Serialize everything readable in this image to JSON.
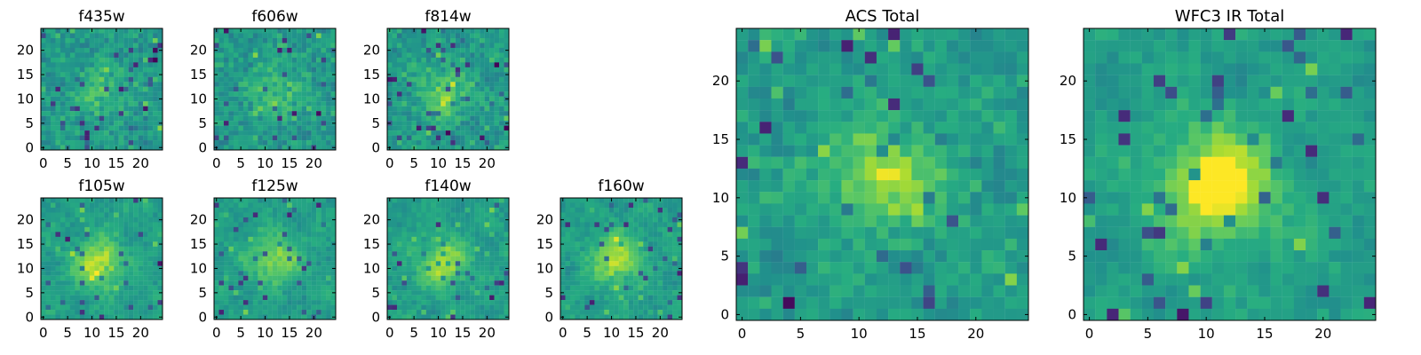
{
  "chart_data": [
    {
      "type": "heatmap",
      "title": "f435w",
      "grid_size": 25,
      "xticks": [
        0,
        5,
        10,
        15,
        20
      ],
      "yticks": [
        0,
        5,
        10,
        15,
        20
      ],
      "colormap": "viridis",
      "center": [
        11,
        11
      ],
      "texture": "noisy",
      "peak_strength": 0.16
    },
    {
      "type": "heatmap",
      "title": "f606w",
      "grid_size": 25,
      "xticks": [
        0,
        5,
        10,
        15,
        20
      ],
      "yticks": [
        0,
        5,
        10,
        15,
        20
      ],
      "colormap": "viridis",
      "center": [
        12,
        11
      ],
      "texture": "noisy",
      "peak_strength": 0.18
    },
    {
      "type": "heatmap",
      "title": "f814w",
      "grid_size": 25,
      "xticks": [
        0,
        5,
        10,
        15,
        20
      ],
      "yticks": [
        0,
        5,
        10,
        15,
        20
      ],
      "colormap": "viridis",
      "center": [
        11,
        11
      ],
      "texture": "noisy",
      "peak_strength": 0.24
    },
    {
      "type": "heatmap",
      "title": "f105w",
      "grid_size": 25,
      "xticks": [
        0,
        5,
        10,
        15,
        20
      ],
      "yticks": [
        0,
        5,
        10,
        15,
        20
      ],
      "colormap": "viridis",
      "center": [
        11,
        11
      ],
      "texture": "smooth",
      "peak_strength": 0.34
    },
    {
      "type": "heatmap",
      "title": "f125w",
      "grid_size": 25,
      "xticks": [
        0,
        5,
        10,
        15,
        20
      ],
      "yticks": [
        0,
        5,
        10,
        15,
        20
      ],
      "colormap": "viridis",
      "center": [
        12,
        12
      ],
      "texture": "smooth",
      "peak_strength": 0.28
    },
    {
      "type": "heatmap",
      "title": "f140w",
      "grid_size": 25,
      "xticks": [
        0,
        5,
        10,
        15,
        20
      ],
      "yticks": [
        0,
        5,
        10,
        15,
        20
      ],
      "colormap": "viridis",
      "center": [
        11,
        11
      ],
      "texture": "smooth",
      "peak_strength": 0.32
    },
    {
      "type": "heatmap",
      "title": "f160w",
      "grid_size": 25,
      "xticks": [
        0,
        5,
        10,
        15,
        20
      ],
      "yticks": [
        0,
        5,
        10,
        15,
        20
      ],
      "colormap": "viridis",
      "center": [
        11,
        12
      ],
      "texture": "smooth",
      "peak_strength": 0.34
    },
    {
      "type": "heatmap",
      "title": "ACS Total",
      "grid_size": 25,
      "xticks": [
        0,
        5,
        10,
        15,
        20
      ],
      "yticks": [
        0,
        5,
        10,
        15,
        20
      ],
      "colormap": "viridis",
      "center": [
        12,
        12
      ],
      "texture": "medium",
      "peak_strength": 0.28
    },
    {
      "type": "heatmap",
      "title": "WFC3 IR Total",
      "grid_size": 25,
      "xticks": [
        0,
        5,
        10,
        15,
        20
      ],
      "yticks": [
        0,
        5,
        10,
        15,
        20
      ],
      "colormap": "viridis",
      "center": [
        11,
        11
      ],
      "texture": "smooth",
      "peak_strength": 0.42
    }
  ]
}
